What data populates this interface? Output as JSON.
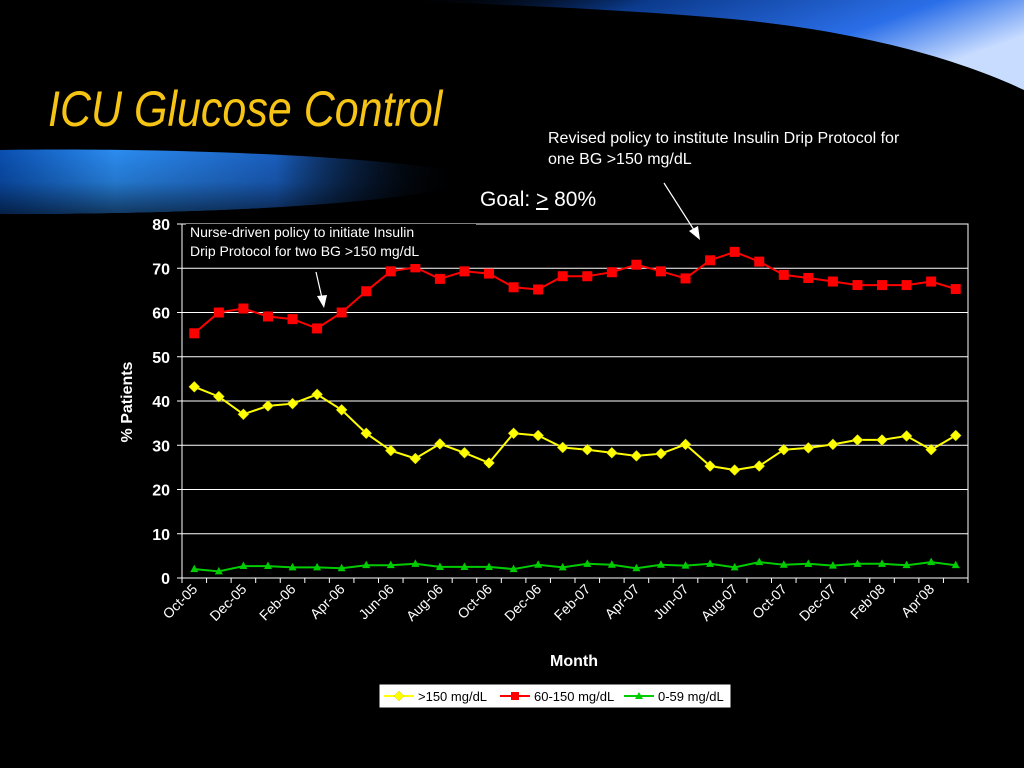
{
  "slide": {
    "title": "ICU Glucose Control",
    "goal_prefix": "Goal: ",
    "goal_symbol": ">",
    "goal_suffix": " 80%",
    "annotation_left_line1": "Nurse-driven policy to initiate Insulin",
    "annotation_left_line2": "Drip Protocol for two BG >150 mg/dL",
    "annotation_right": "Revised policy to institute Insulin Drip Protocol for one BG >150 mg/dL"
  },
  "colors": {
    "title": "#f6c414",
    "series_gt150": "#ffff00",
    "series_60_150": "#ff0000",
    "series_0_59": "#00cc00",
    "band_blue": "#1e7fe0"
  },
  "chart_data": {
    "type": "line",
    "title": "",
    "xlabel": "Month",
    "ylabel": "% Patients",
    "ylim": [
      0,
      80
    ],
    "yticks": [
      0,
      10,
      20,
      30,
      40,
      50,
      60,
      70,
      80
    ],
    "grid": true,
    "legend_position": "bottom",
    "x_tick_labels": [
      "Oct-05",
      "Dec-05",
      "Feb-06",
      "Apr-06",
      "Jun-06",
      "Aug-06",
      "Oct-06",
      "Dec-06",
      "Feb-07",
      "Apr-07",
      "Jun-07",
      "Aug-07",
      "Oct-07",
      "Dec-07",
      "Feb'08",
      "Apr'08"
    ],
    "series": [
      {
        "name": ">150 mg/dL",
        "marker": "diamond",
        "values": [
          43.2,
          41.0,
          37.0,
          38.9,
          39.4,
          41.5,
          38.0,
          32.7,
          28.8,
          27.0,
          30.3,
          28.3,
          26.0,
          32.7,
          32.2,
          29.5,
          29.0,
          28.3,
          27.6,
          28.1,
          30.2,
          25.3,
          24.4,
          25.3,
          29.0,
          29.4,
          30.2,
          31.2,
          31.2,
          32.1,
          29.0,
          32.2
        ]
      },
      {
        "name": "60-150 mg/dL",
        "marker": "square",
        "values": [
          55.3,
          60.0,
          60.9,
          59.1,
          58.5,
          56.4,
          60.0,
          64.8,
          69.3,
          70.2,
          67.6,
          69.3,
          68.8,
          65.7,
          65.2,
          68.2,
          68.2,
          69.1,
          70.8,
          69.3,
          67.7,
          71.8,
          73.7,
          71.5,
          68.5,
          67.8,
          67.0,
          66.2,
          66.2,
          66.2,
          67.0,
          65.3
        ]
      },
      {
        "name": "0-59 mg/dL",
        "marker": "triangle",
        "values": [
          2.0,
          1.5,
          2.7,
          2.7,
          2.4,
          2.4,
          2.2,
          2.9,
          2.9,
          3.2,
          2.5,
          2.5,
          2.5,
          2.0,
          3.0,
          2.4,
          3.2,
          3.0,
          2.2,
          3.0,
          2.8,
          3.2,
          2.4,
          3.6,
          3.0,
          3.2,
          2.8,
          3.2,
          3.2,
          2.9,
          3.6,
          2.9
        ]
      }
    ]
  }
}
